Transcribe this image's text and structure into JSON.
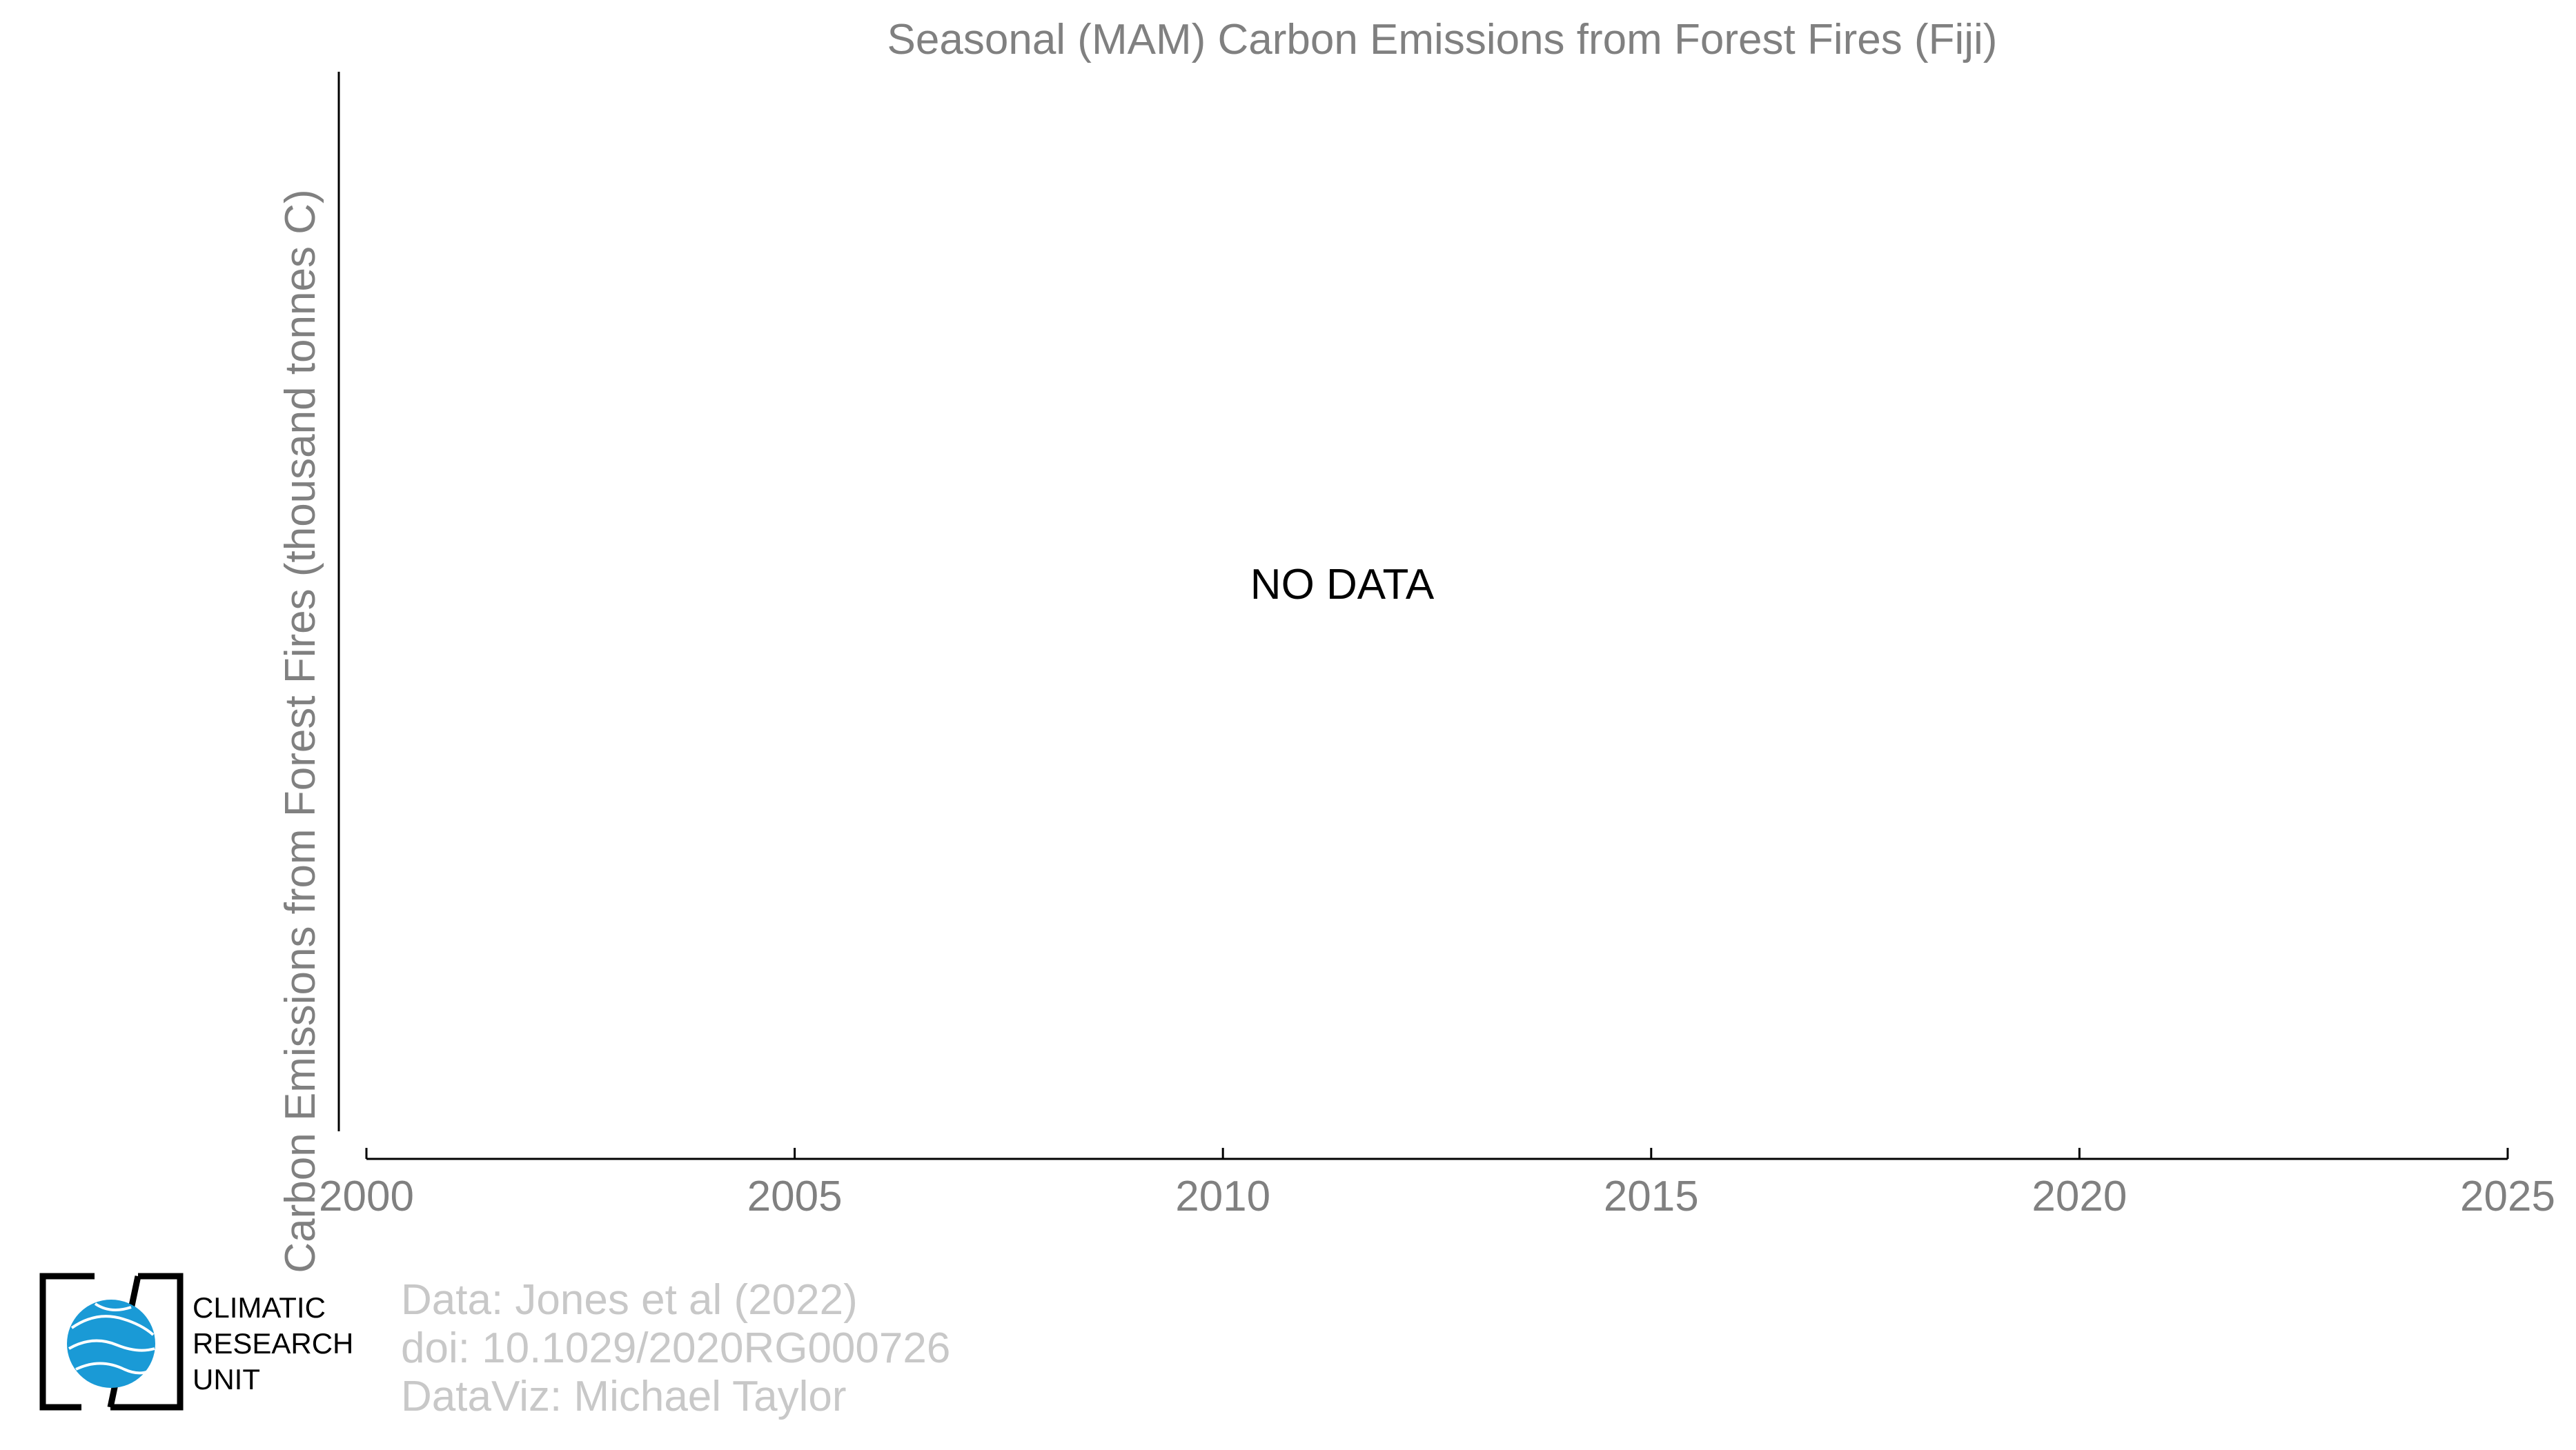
{
  "chart_data": {
    "type": "line",
    "title": "Seasonal (MAM) Carbon Emissions from Forest Fires (Fiji)",
    "xlabel": "",
    "ylabel": "Carbon Emissions from Forest Fires (thousand tonnes C)",
    "x_ticks": [
      "2000",
      "2005",
      "2010",
      "2015",
      "2020",
      "2025"
    ],
    "xlim": [
      2000,
      2025
    ],
    "series": [],
    "annotations": [
      "NO DATA"
    ],
    "grid": false,
    "legend": "none"
  },
  "logo": {
    "lines": [
      "CLIMATIC",
      "RESEARCH",
      "UNIT"
    ],
    "icon": "globe-icon",
    "globe_color": "#1a9ad6",
    "bracket_color": "#000000"
  },
  "credits": [
    "Data: Jones et al (2022)",
    "doi: 10.1029/2020RG000726",
    "DataViz: Michael Taylor"
  ],
  "colors": {
    "axis": "#000000",
    "text_gray": "#808080",
    "credit_gray": "#c8c8c8"
  }
}
